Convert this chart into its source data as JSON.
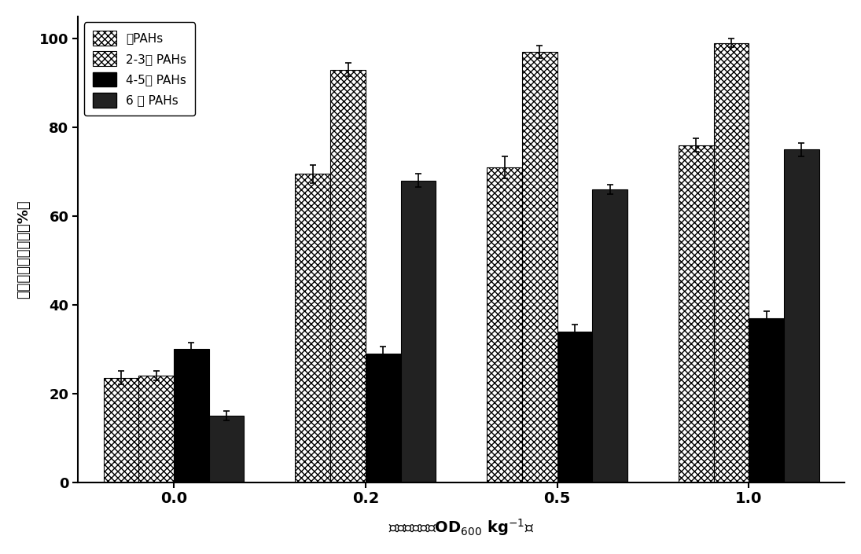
{
  "categories": [
    "0.0",
    "0.2",
    "0.5",
    "1.0"
  ],
  "series_names": [
    "总PAHs",
    "2-3环 PAHs",
    "4-5环 PAHs",
    "6 环 PAHs"
  ],
  "values": [
    [
      23.5,
      69.5,
      71.0,
      76.0
    ],
    [
      24.0,
      93.0,
      97.0,
      99.0
    ],
    [
      30.0,
      29.0,
      34.0,
      37.0
    ],
    [
      15.0,
      68.0,
      66.0,
      75.0
    ]
  ],
  "errors": [
    [
      1.5,
      2.0,
      2.5,
      1.5
    ],
    [
      1.0,
      1.5,
      1.5,
      1.0
    ],
    [
      1.5,
      1.5,
      1.5,
      1.5
    ],
    [
      1.0,
      1.5,
      1.0,
      1.5
    ]
  ],
  "face_colors": [
    "white",
    "white",
    "black",
    "#222222"
  ],
  "edge_colors": [
    "black",
    "black",
    "black",
    "black"
  ],
  "hatch_patterns": [
    "zigzag",
    "zigzag",
    "",
    ""
  ],
  "bar_width": 0.55,
  "group_centers": [
    0,
    3,
    6,
    9
  ],
  "ylim": [
    0,
    105
  ],
  "yticks": [
    0,
    20,
    40,
    60,
    80,
    100
  ],
  "ylabel": "多环芳烃降解效率（%）",
  "background_color": "#ffffff",
  "legend_loc": "upper left"
}
